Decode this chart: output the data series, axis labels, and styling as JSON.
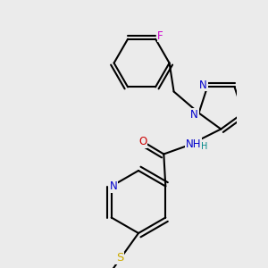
{
  "bg_color": "#ebebeb",
  "atom_colors": {
    "C": "#000000",
    "N": "#0000cc",
    "O": "#cc0000",
    "S": "#ccaa00",
    "F": "#cc00cc",
    "H": "#008888"
  },
  "bond_color": "#000000",
  "bond_lw": 1.5,
  "dbo": 0.025,
  "fs": 8.5,
  "xlim": [
    -0.1,
    1.05
  ],
  "ylim": [
    -0.15,
    1.35
  ]
}
